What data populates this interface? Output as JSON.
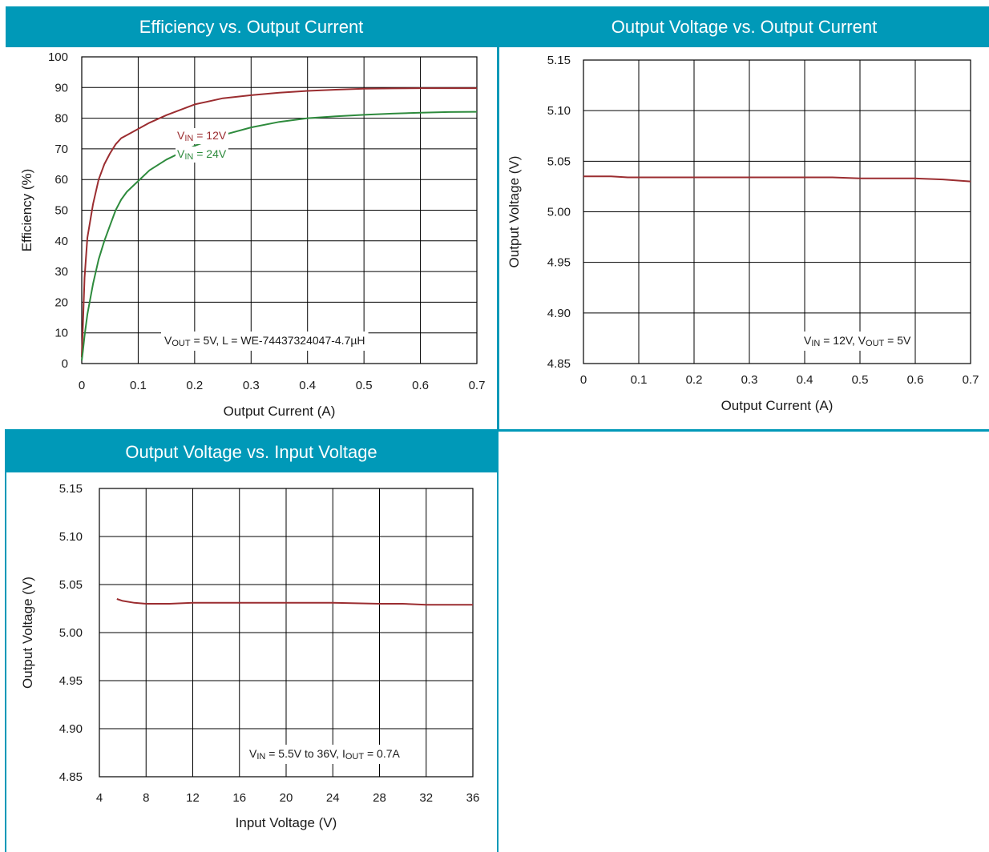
{
  "colors": {
    "header_bg": "#0099b8",
    "header_text": "#ffffff",
    "series_12v": "#9b2d30",
    "series_24v": "#2e8b3d",
    "grid": "#000000"
  },
  "panels": [
    {
      "title": "Efficiency vs. Output Current"
    },
    {
      "title": "Output Voltage vs. Output Current"
    },
    {
      "title": "Output Voltage vs. Input Voltage"
    }
  ],
  "chart_data": [
    {
      "type": "line",
      "title": "Efficiency vs. Output Current",
      "xlabel": "Output Current (A)",
      "ylabel": "Efficiency (%)",
      "xlim": [
        0,
        0.7
      ],
      "ylim": [
        0,
        100
      ],
      "x_ticks": [
        "0",
        "0.1",
        "0.2",
        "0.3",
        "0.4",
        "0.5",
        "0.6",
        "0.7"
      ],
      "y_ticks": [
        "0",
        "10",
        "20",
        "30",
        "40",
        "50",
        "60",
        "70",
        "80",
        "90",
        "100"
      ],
      "grid": true,
      "legend_position": "center",
      "annotation": {
        "prefix": "V",
        "sub": "OUT",
        "rest": " = 5V, L = WE-74437324047-4.7µH"
      },
      "series": [
        {
          "name": "VIN = 12V",
          "label_base": "V",
          "label_sub": "IN",
          "label_rest": " = 12V",
          "color": "#9b2d30",
          "x": [
            0,
            0.002,
            0.005,
            0.01,
            0.02,
            0.03,
            0.04,
            0.05,
            0.06,
            0.07,
            0.08,
            0.1,
            0.12,
            0.15,
            0.2,
            0.25,
            0.3,
            0.35,
            0.4,
            0.45,
            0.5,
            0.55,
            0.6,
            0.65,
            0.7
          ],
          "y": [
            2,
            12,
            28,
            41,
            52,
            60,
            65,
            68.5,
            71.5,
            73.5,
            74.5,
            76.5,
            78.5,
            81,
            84.5,
            86.5,
            87.5,
            88.3,
            88.9,
            89.3,
            89.6,
            89.7,
            89.8,
            89.8,
            89.8
          ]
        },
        {
          "name": "VIN = 24V",
          "label_base": "V",
          "label_sub": "IN",
          "label_rest": " = 24V",
          "color": "#2e8b3d",
          "x": [
            0,
            0.002,
            0.005,
            0.01,
            0.02,
            0.03,
            0.04,
            0.05,
            0.06,
            0.07,
            0.08,
            0.1,
            0.12,
            0.15,
            0.2,
            0.25,
            0.3,
            0.35,
            0.4,
            0.45,
            0.5,
            0.55,
            0.6,
            0.65,
            0.7
          ],
          "y": [
            1,
            4,
            9,
            16,
            26,
            34,
            40,
            45,
            50,
            53.5,
            56,
            59.5,
            63,
            66.5,
            71,
            74.5,
            77,
            78.8,
            80,
            80.6,
            81.1,
            81.5,
            81.8,
            82,
            82.1
          ]
        }
      ]
    },
    {
      "type": "line",
      "title": "Output Voltage vs. Output Current",
      "xlabel": "Output Current (A)",
      "ylabel": "Output Voltage (V)",
      "xlim": [
        0,
        0.7
      ],
      "ylim": [
        4.85,
        5.15
      ],
      "x_ticks": [
        "0",
        "0.1",
        "0.2",
        "0.3",
        "0.4",
        "0.5",
        "0.6",
        "0.7"
      ],
      "y_ticks": [
        "4.85",
        "4.90",
        "4.95",
        "5.00",
        "5.05",
        "5.10",
        "5.15"
      ],
      "grid": true,
      "annotation": {
        "parts": [
          {
            "b": "V",
            "s": "IN",
            "r": " = 12V, "
          },
          {
            "b": "V",
            "s": "OUT",
            "r": " = 5V"
          }
        ]
      },
      "series": [
        {
          "color": "#9b2d30",
          "x": [
            0,
            0.05,
            0.08,
            0.1,
            0.2,
            0.3,
            0.4,
            0.45,
            0.5,
            0.6,
            0.65,
            0.7
          ],
          "y": [
            5.035,
            5.035,
            5.034,
            5.034,
            5.034,
            5.034,
            5.034,
            5.034,
            5.033,
            5.033,
            5.032,
            5.03
          ]
        }
      ]
    },
    {
      "type": "line",
      "title": "Output Voltage vs. Input Voltage",
      "xlabel": "Input Voltage (V)",
      "ylabel": "Output Voltage (V)",
      "xlim": [
        4,
        36
      ],
      "ylim": [
        4.85,
        5.15
      ],
      "x_ticks": [
        "4",
        "8",
        "12",
        "16",
        "20",
        "24",
        "28",
        "32",
        "36"
      ],
      "y_ticks": [
        "4.85",
        "4.90",
        "4.95",
        "5.00",
        "5.05",
        "5.10",
        "5.15"
      ],
      "grid": true,
      "annotation": {
        "parts": [
          {
            "b": "V",
            "s": "IN",
            "r": " = 5.5V to 36V, "
          },
          {
            "b": "I",
            "s": "OUT",
            "r": " = 0.7A"
          }
        ]
      },
      "series": [
        {
          "color": "#9b2d30",
          "x": [
            5.5,
            6,
            7,
            8,
            10,
            12,
            16,
            20,
            24,
            28,
            30,
            32,
            36
          ],
          "y": [
            5.035,
            5.033,
            5.031,
            5.03,
            5.03,
            5.031,
            5.031,
            5.031,
            5.031,
            5.03,
            5.03,
            5.029,
            5.029
          ]
        }
      ]
    }
  ]
}
